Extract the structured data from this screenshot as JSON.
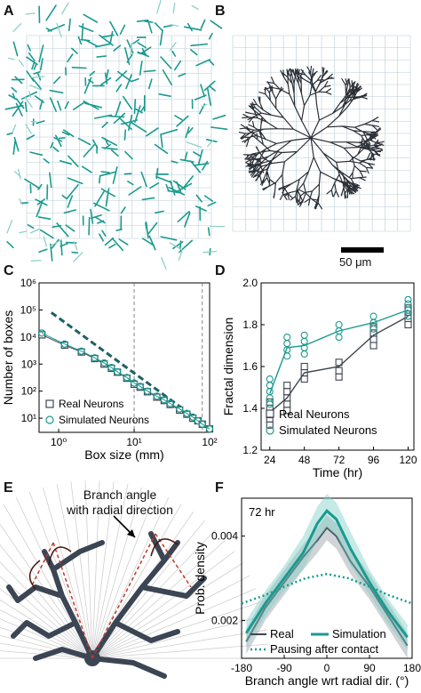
{
  "panels": {
    "a": {
      "letter": "A"
    },
    "b": {
      "letter": "B",
      "scale_bar": "50 μm"
    },
    "c": {
      "letter": "C"
    },
    "d": {
      "letter": "D"
    },
    "e": {
      "letter": "E",
      "annotation_line1": "Branch angle",
      "annotation_line2": "with radial direction"
    },
    "f": {
      "letter": "F"
    }
  },
  "colors": {
    "real": "#3d4550",
    "simulated": "#1a9a8f",
    "red": "#c0392b",
    "grid": "#b9cdd6"
  },
  "chart_data": [
    {
      "id": "C",
      "type": "scatter",
      "xscale": "log",
      "yscale": "log",
      "xlabel": "Box size (mm)",
      "ylabel": "Number of boxes",
      "xlim": [
        0.55,
        100
      ],
      "ylim": [
        3,
        1000000
      ],
      "xticks": [
        {
          "v": 1,
          "t": "10⁰"
        },
        {
          "v": 10,
          "t": "10¹"
        },
        {
          "v": 100,
          "t": "10²"
        }
      ],
      "yticks": [
        {
          "v": 10,
          "t": "10¹"
        },
        {
          "v": 100,
          "t": "10²"
        },
        {
          "v": 1000,
          "t": "10³"
        },
        {
          "v": 10000,
          "t": "10⁴"
        },
        {
          "v": 100000,
          "t": "10⁵"
        },
        {
          "v": 1000000,
          "t": "10⁶"
        }
      ],
      "vlines": [
        10,
        80
      ],
      "legend": [
        "Real Neurons",
        "Simulated Neurons"
      ],
      "series": [
        {
          "name": "Real Neurons",
          "marker": "square",
          "x": [
            0.6,
            1.2,
            2,
            3,
            4,
            5,
            6,
            8,
            10,
            12,
            15,
            20,
            25,
            30,
            40,
            50,
            60,
            70,
            80,
            100
          ],
          "y": [
            12000,
            5000,
            2800,
            1600,
            1000,
            700,
            500,
            300,
            180,
            140,
            95,
            60,
            45,
            32,
            20,
            14,
            10,
            8,
            6,
            4
          ]
        },
        {
          "name": "Simulated Neurons",
          "marker": "circle",
          "x": [
            0.6,
            1.2,
            2,
            3,
            4,
            5,
            6,
            8,
            10,
            12,
            15,
            20,
            25,
            30,
            40,
            50,
            60,
            70,
            80,
            100
          ],
          "y": [
            14000,
            5500,
            3000,
            1700,
            1100,
            750,
            520,
            320,
            200,
            150,
            100,
            65,
            48,
            35,
            22,
            15,
            11,
            8,
            6,
            4
          ]
        }
      ],
      "fit_line": {
        "x": [
          0.8,
          60
        ],
        "y": [
          80000,
          12
        ]
      }
    },
    {
      "id": "D",
      "type": "line",
      "xlabel": "Time (hr)",
      "ylabel": "Fractal dimension",
      "xlim": [
        18,
        124
      ],
      "ylim": [
        1.2,
        2.0
      ],
      "xticks": [
        24,
        48,
        72,
        96,
        120
      ],
      "yticks": [
        1.2,
        1.4,
        1.6,
        1.8,
        2.0
      ],
      "legend": [
        "Real Neurons",
        "Simulated Neurons"
      ],
      "series": [
        {
          "name": "Real Neurons",
          "marker": "square",
          "x": [
            24,
            36,
            48,
            72,
            96,
            120
          ],
          "y": [
            1.38,
            1.45,
            1.57,
            1.6,
            1.75,
            1.84
          ],
          "scatter": [
            [
              24,
              1.32
            ],
            [
              24,
              1.35
            ],
            [
              24,
              1.37
            ],
            [
              24,
              1.4
            ],
            [
              24,
              1.43
            ],
            [
              36,
              1.39
            ],
            [
              36,
              1.42
            ],
            [
              36,
              1.45
            ],
            [
              36,
              1.48
            ],
            [
              36,
              1.51
            ],
            [
              48,
              1.54
            ],
            [
              48,
              1.57
            ],
            [
              48,
              1.6
            ],
            [
              72,
              1.55
            ],
            [
              72,
              1.58
            ],
            [
              72,
              1.62
            ],
            [
              96,
              1.7
            ],
            [
              96,
              1.73
            ],
            [
              96,
              1.76
            ],
            [
              96,
              1.79
            ],
            [
              120,
              1.8
            ],
            [
              120,
              1.83
            ],
            [
              120,
              1.86
            ],
            [
              120,
              1.88
            ]
          ]
        },
        {
          "name": "Simulated Neurons",
          "marker": "circle",
          "x": [
            24,
            36,
            48,
            72,
            96,
            120
          ],
          "y": [
            1.47,
            1.69,
            1.7,
            1.77,
            1.81,
            1.87
          ],
          "scatter": [
            [
              24,
              1.42
            ],
            [
              24,
              1.45
            ],
            [
              24,
              1.48
            ],
            [
              24,
              1.51
            ],
            [
              24,
              1.54
            ],
            [
              36,
              1.65
            ],
            [
              36,
              1.68
            ],
            [
              36,
              1.71
            ],
            [
              36,
              1.74
            ],
            [
              48,
              1.66
            ],
            [
              48,
              1.69
            ],
            [
              48,
              1.72
            ],
            [
              48,
              1.75
            ],
            [
              72,
              1.74
            ],
            [
              72,
              1.77
            ],
            [
              72,
              1.8
            ],
            [
              96,
              1.78
            ],
            [
              96,
              1.81
            ],
            [
              96,
              1.84
            ],
            [
              120,
              1.84
            ],
            [
              120,
              1.87
            ],
            [
              120,
              1.9
            ],
            [
              120,
              1.92
            ]
          ]
        }
      ]
    },
    {
      "id": "F",
      "type": "line",
      "title": "72 hr",
      "xlabel": "Branch angle wrt radial dir. (°)",
      "ylabel": "Prob. density",
      "xlim": [
        -180,
        180
      ],
      "ylim": [
        0.0011,
        0.0049
      ],
      "xticks": [
        -180,
        -90,
        0,
        90,
        180
      ],
      "yticks": [
        0.002,
        0.004
      ],
      "ytick_labels": [
        "0.002",
        "0.004"
      ],
      "legend": [
        "Real",
        "Simulation",
        "Pausing after contact"
      ],
      "series": [
        {
          "name": "Real",
          "style": "solid-dark",
          "x": [
            -170,
            -130,
            -90,
            -50,
            -20,
            0,
            20,
            50,
            90,
            130,
            170
          ],
          "y": [
            0.0015,
            0.0023,
            0.0029,
            0.0035,
            0.0039,
            0.0042,
            0.004,
            0.0034,
            0.0028,
            0.0021,
            0.0014
          ],
          "band": [
            0.0003,
            0.0003,
            0.0003,
            0.0003,
            0.0003,
            0.0003,
            0.0003,
            0.0003,
            0.0003,
            0.0003,
            0.0003
          ]
        },
        {
          "name": "Simulation",
          "style": "solid-teal",
          "x": [
            -170,
            -130,
            -90,
            -50,
            -20,
            0,
            20,
            50,
            90,
            130,
            170
          ],
          "y": [
            0.0017,
            0.0024,
            0.003,
            0.0036,
            0.0043,
            0.0046,
            0.0044,
            0.0037,
            0.0029,
            0.0022,
            0.0016
          ],
          "band": [
            0.0003,
            0.0003,
            0.0003,
            0.0004,
            0.0004,
            0.0004,
            0.0004,
            0.0004,
            0.0003,
            0.0003,
            0.0003
          ]
        },
        {
          "name": "Pausing after contact",
          "style": "dotted-teal",
          "x": [
            -180,
            -130,
            -90,
            -45,
            0,
            45,
            90,
            130,
            180
          ],
          "y": [
            0.0024,
            0.0026,
            0.0028,
            0.003,
            0.0031,
            0.003,
            0.0028,
            0.0026,
            0.0024
          ]
        }
      ]
    }
  ]
}
